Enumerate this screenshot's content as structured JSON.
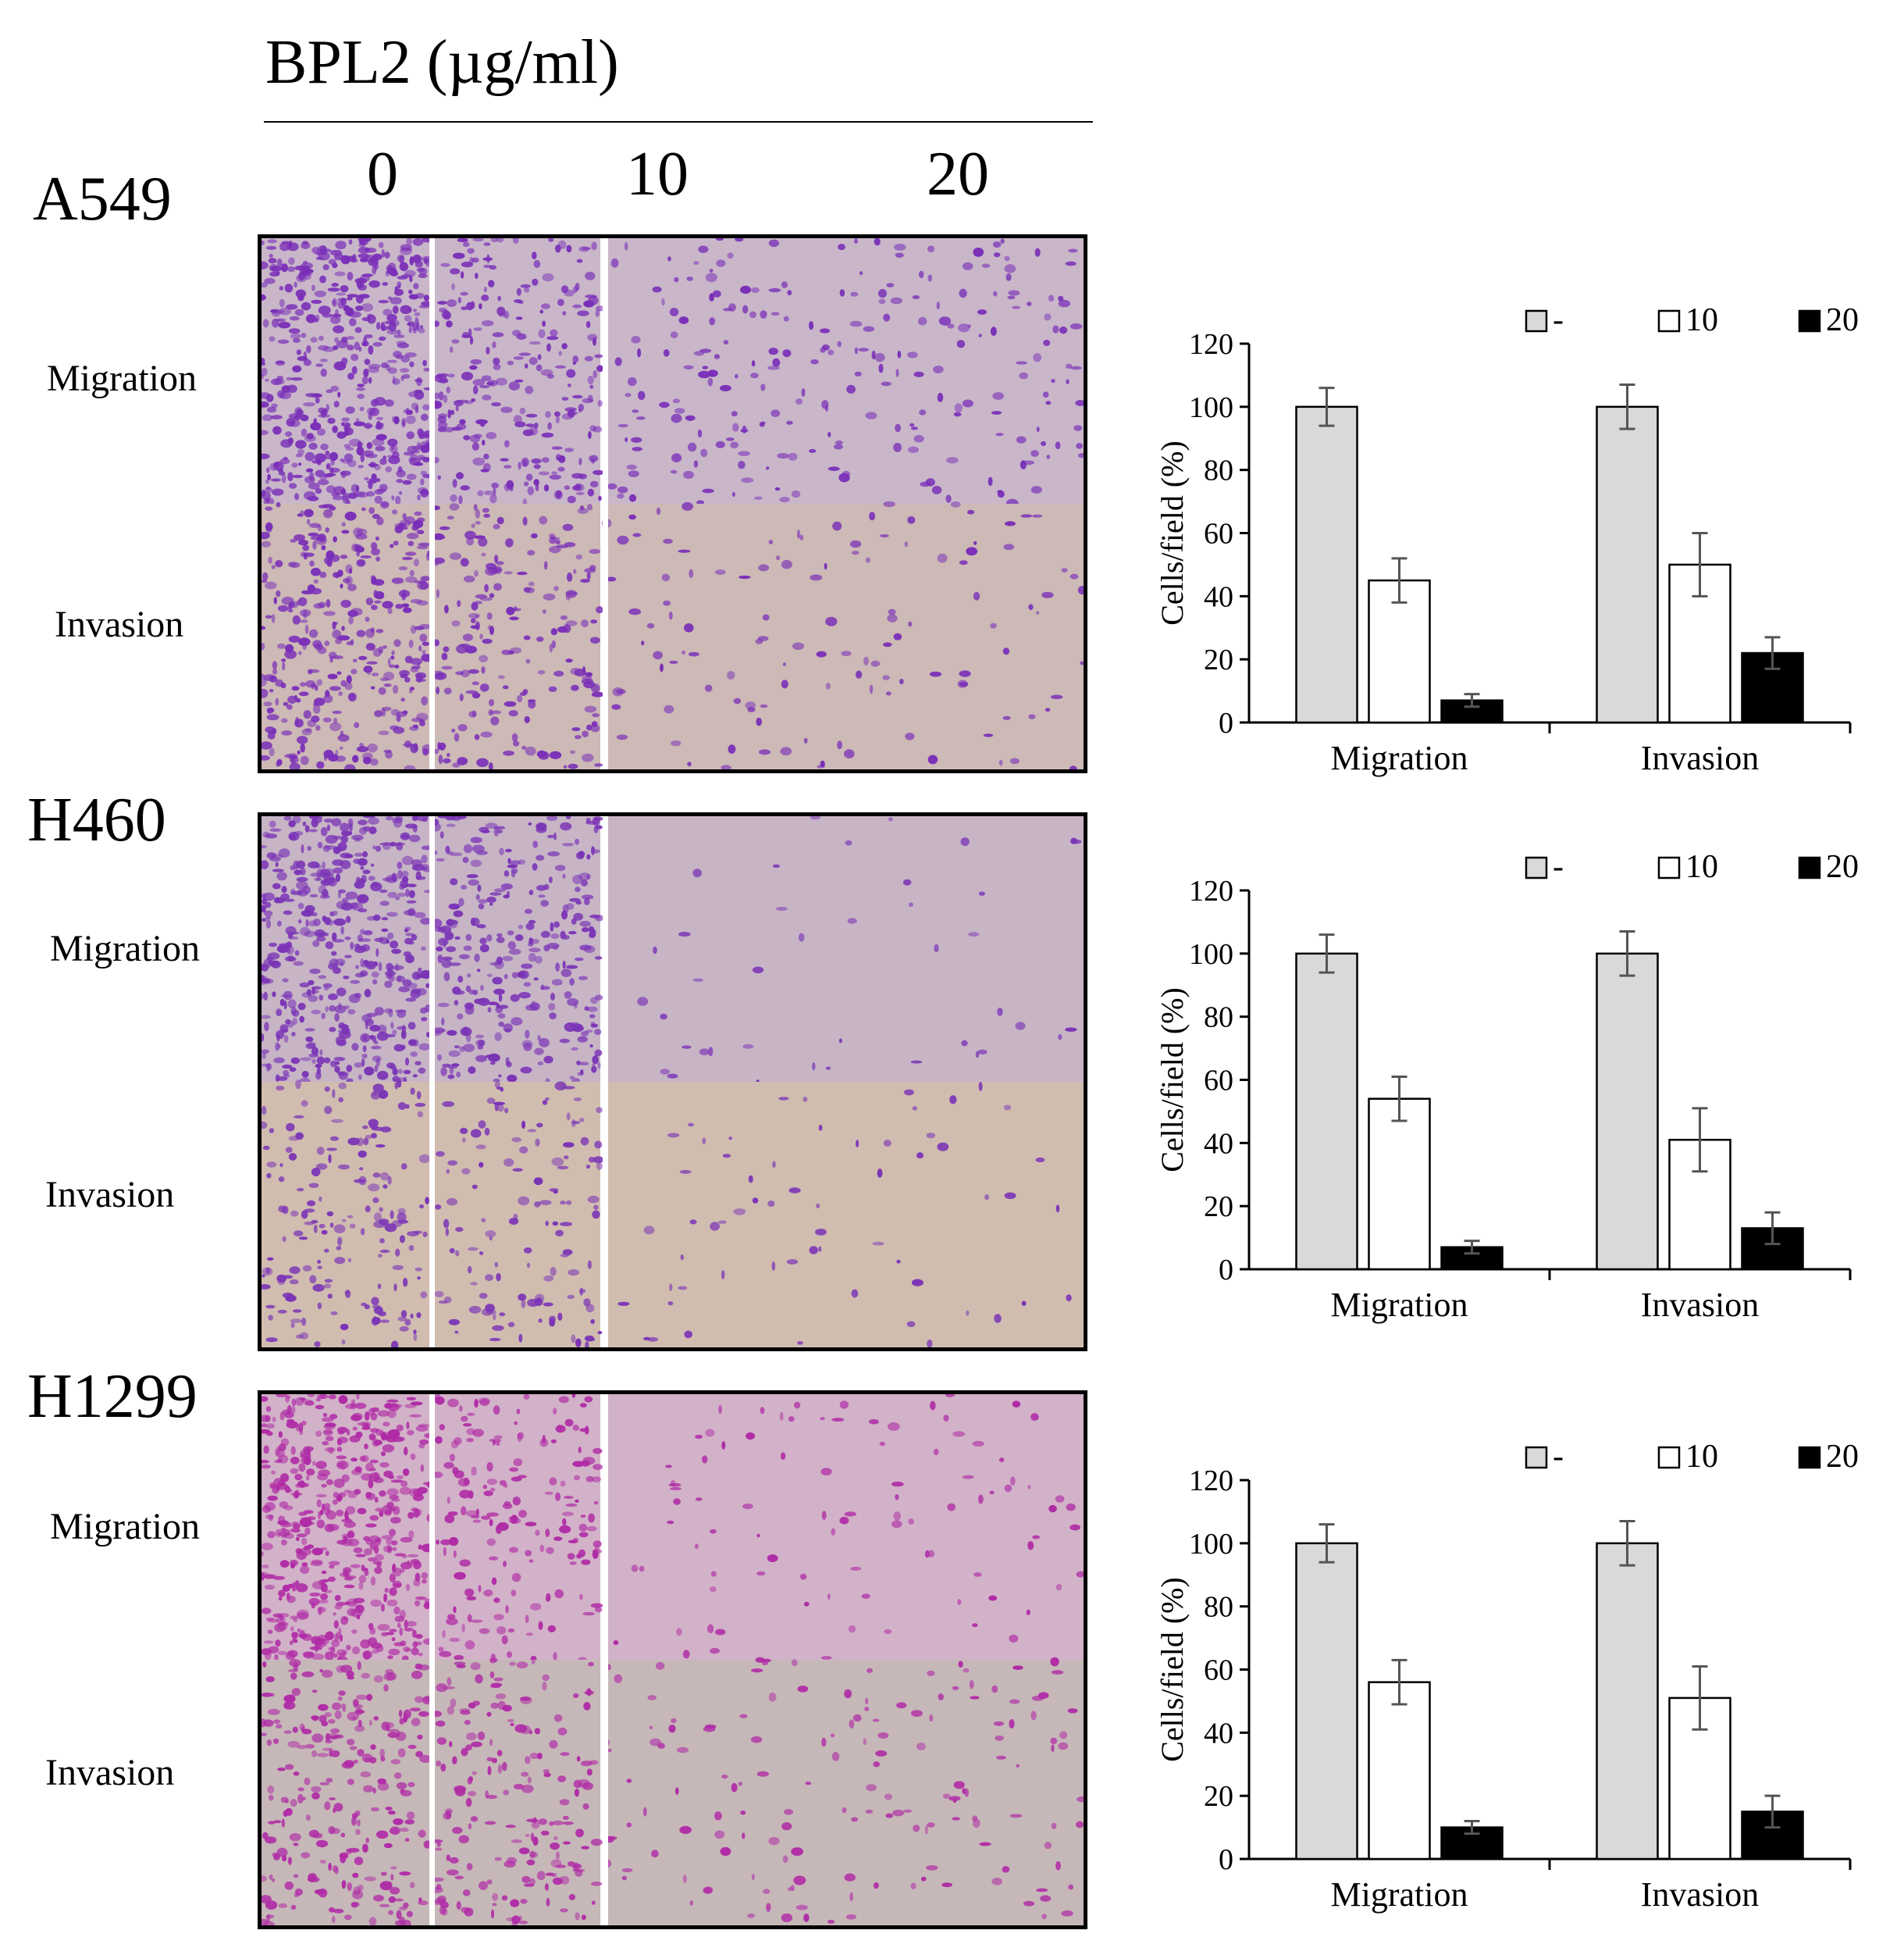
{
  "header": {
    "title": "BPL2 (µg/ml)",
    "concentrations": [
      "0",
      "10",
      "20"
    ]
  },
  "row_labels": {
    "migration": "Migration",
    "invasion": "Invasion"
  },
  "stain_colors": {
    "A549": {
      "bg_migration": "#c9b7c9",
      "bg_invasion": "#cdb9b6",
      "cell": "#7a2fb8"
    },
    "H460": {
      "bg_migration": "#c7b5c6",
      "bg_invasion": "#d1bdb0",
      "cell": "#7b34b6"
    },
    "H1299": {
      "bg_migration": "#d2b2c8",
      "bg_invasion": "#c6b8b8",
      "cell": "#b02ca6"
    }
  },
  "legend": {
    "labels": [
      "-",
      "10",
      "20"
    ],
    "colors": [
      "#d9d9d9",
      "#ffffff",
      "#000000"
    ]
  },
  "chart_data": [
    {
      "type": "bar",
      "cell_line": "A549",
      "categories": [
        "Migration",
        "Invasion"
      ],
      "series": [
        {
          "name": "-",
          "values": [
            100,
            100
          ],
          "errors": [
            6,
            7
          ]
        },
        {
          "name": "10",
          "values": [
            45,
            50
          ],
          "errors": [
            7,
            10
          ]
        },
        {
          "name": "20",
          "values": [
            7,
            22
          ],
          "errors": [
            2,
            5
          ]
        }
      ],
      "ylabel": "Cells/field (%)",
      "ylim": [
        0,
        120
      ],
      "yticks": [
        0,
        20,
        40,
        60,
        80,
        100,
        120
      ],
      "legend": "top-right",
      "grid": false
    },
    {
      "type": "bar",
      "cell_line": "H460",
      "categories": [
        "Migration",
        "Invasion"
      ],
      "series": [
        {
          "name": "-",
          "values": [
            100,
            100
          ],
          "errors": [
            6,
            7
          ]
        },
        {
          "name": "10",
          "values": [
            54,
            41
          ],
          "errors": [
            7,
            10
          ]
        },
        {
          "name": "20",
          "values": [
            7,
            13
          ],
          "errors": [
            2,
            5
          ]
        }
      ],
      "ylabel": "Cells/field (%)",
      "ylim": [
        0,
        120
      ],
      "yticks": [
        0,
        20,
        40,
        60,
        80,
        100,
        120
      ],
      "legend": "top-right",
      "grid": false
    },
    {
      "type": "bar",
      "cell_line": "H1299",
      "categories": [
        "Migration",
        "Invasion"
      ],
      "series": [
        {
          "name": "-",
          "values": [
            100,
            100
          ],
          "errors": [
            6,
            7
          ]
        },
        {
          "name": "10",
          "values": [
            56,
            51
          ],
          "errors": [
            7,
            10
          ]
        },
        {
          "name": "20",
          "values": [
            10,
            15
          ],
          "errors": [
            2,
            5
          ]
        }
      ],
      "ylabel": "Cells/field (%)",
      "ylim": [
        0,
        120
      ],
      "yticks": [
        0,
        20,
        40,
        60,
        80,
        100,
        120
      ],
      "legend": "top-right",
      "grid": false
    }
  ]
}
